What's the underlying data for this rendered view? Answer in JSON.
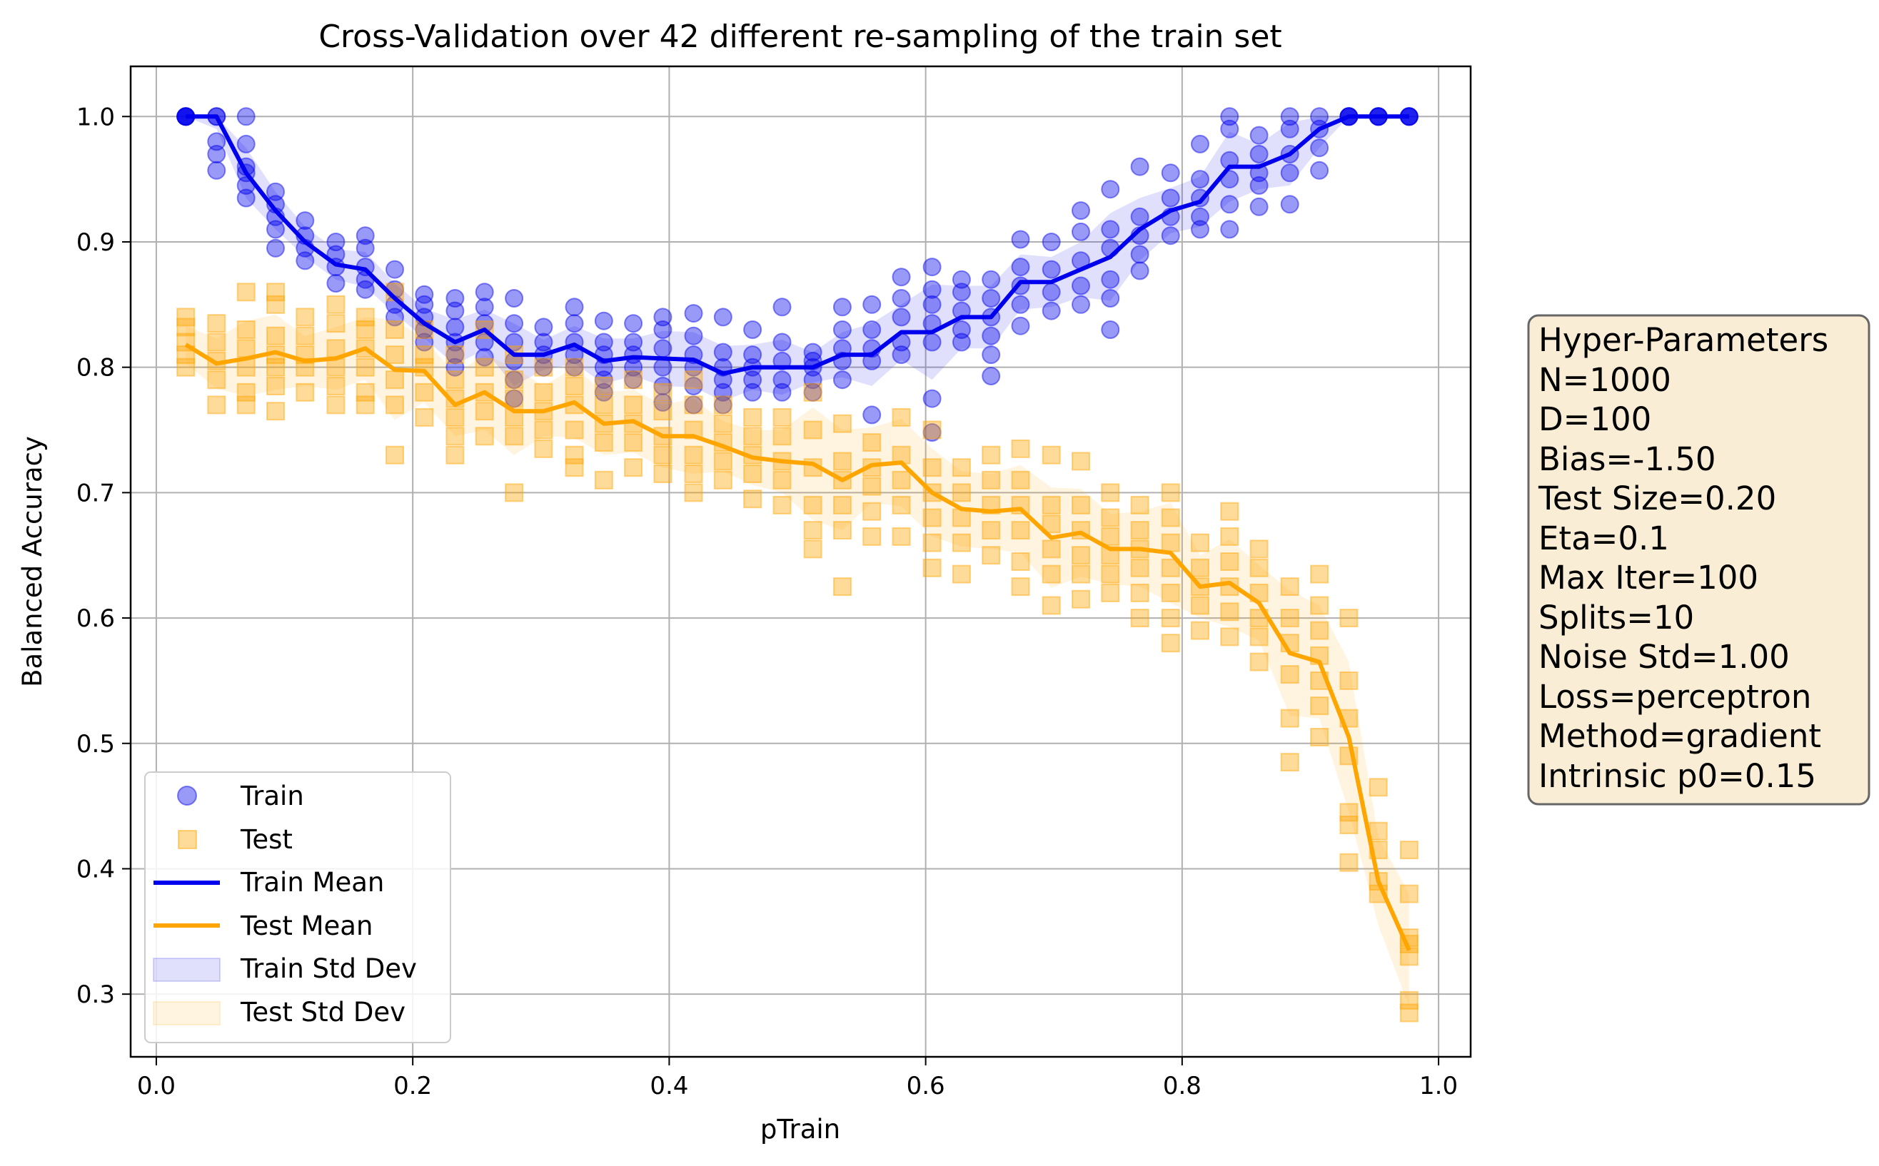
{
  "chart_data": {
    "type": "scatter",
    "title": "Cross-Validation over 42 different re-sampling of the train set",
    "xlabel": "pTrain",
    "ylabel": "Balanced Accuracy",
    "xlim": [
      -0.02,
      1.025
    ],
    "ylim": [
      0.25,
      1.04
    ],
    "xticks": [
      "0.0",
      "0.2",
      "0.4",
      "0.6",
      "0.8",
      "1.0"
    ],
    "yticks": [
      "0.3",
      "0.4",
      "0.5",
      "0.6",
      "0.7",
      "0.8",
      "0.9",
      "1.0"
    ],
    "grid": true,
    "legend_position": "lower-left",
    "legend": [
      "Train",
      "Test",
      "Train Mean",
      "Test Mean",
      "Train Std Dev",
      "Test Std Dev"
    ],
    "colors": {
      "train": "#0000ee",
      "test": "#ffa500"
    },
    "x": [
      0.023,
      0.047,
      0.07,
      0.093,
      0.116,
      0.14,
      0.163,
      0.186,
      0.209,
      0.233,
      0.256,
      0.279,
      0.302,
      0.326,
      0.349,
      0.372,
      0.395,
      0.419,
      0.442,
      0.465,
      0.488,
      0.512,
      0.535,
      0.558,
      0.581,
      0.605,
      0.628,
      0.651,
      0.674,
      0.698,
      0.721,
      0.744,
      0.767,
      0.791,
      0.814,
      0.837,
      0.86,
      0.884,
      0.907,
      0.93,
      0.953,
      0.977
    ],
    "series": [
      {
        "name": "Train Mean",
        "values": [
          1.0,
          1.0,
          0.955,
          0.925,
          0.9,
          0.882,
          0.878,
          0.855,
          0.835,
          0.82,
          0.83,
          0.81,
          0.81,
          0.818,
          0.805,
          0.808,
          0.807,
          0.806,
          0.795,
          0.8,
          0.8,
          0.8,
          0.81,
          0.81,
          0.828,
          0.828,
          0.84,
          0.84,
          0.868,
          0.868,
          0.878,
          0.888,
          0.91,
          0.925,
          0.932,
          0.96,
          0.96,
          0.97,
          0.99,
          1.0,
          1.0,
          1.0
        ]
      },
      {
        "name": "Test Mean",
        "values": [
          0.818,
          0.803,
          0.807,
          0.812,
          0.805,
          0.807,
          0.815,
          0.798,
          0.797,
          0.77,
          0.78,
          0.765,
          0.765,
          0.772,
          0.755,
          0.757,
          0.745,
          0.745,
          0.737,
          0.728,
          0.725,
          0.723,
          0.71,
          0.722,
          0.724,
          0.7,
          0.687,
          0.685,
          0.687,
          0.664,
          0.668,
          0.655,
          0.655,
          0.652,
          0.625,
          0.628,
          0.612,
          0.572,
          0.565,
          0.505,
          0.39,
          0.335
        ]
      },
      {
        "name": "Train",
        "values": [
          [
            1.0,
            1.0,
            1.0,
            1.0,
            1.0
          ],
          [
            1.0,
            1.0,
            0.98,
            0.97,
            0.957
          ],
          [
            1.0,
            0.978,
            0.96,
            0.955,
            0.945,
            0.935
          ],
          [
            0.94,
            0.93,
            0.92,
            0.91,
            0.895
          ],
          [
            0.917,
            0.905,
            0.895,
            0.885
          ],
          [
            0.9,
            0.89,
            0.88,
            0.867
          ],
          [
            0.905,
            0.895,
            0.88,
            0.87,
            0.862
          ],
          [
            0.878,
            0.862,
            0.85,
            0.84
          ],
          [
            0.858,
            0.85,
            0.84,
            0.83,
            0.82
          ],
          [
            0.855,
            0.845,
            0.832,
            0.82,
            0.81,
            0.8
          ],
          [
            0.86,
            0.848,
            0.835,
            0.82,
            0.808
          ],
          [
            0.855,
            0.835,
            0.82,
            0.805,
            0.79,
            0.775
          ],
          [
            0.832,
            0.82,
            0.81,
            0.8
          ],
          [
            0.848,
            0.835,
            0.82,
            0.81,
            0.8
          ],
          [
            0.837,
            0.82,
            0.81,
            0.8,
            0.79,
            0.78
          ],
          [
            0.835,
            0.82,
            0.81,
            0.8,
            0.79
          ],
          [
            0.84,
            0.83,
            0.815,
            0.8,
            0.785,
            0.772
          ],
          [
            0.843,
            0.825,
            0.81,
            0.8,
            0.785,
            0.77
          ],
          [
            0.84,
            0.812,
            0.8,
            0.79,
            0.78,
            0.77
          ],
          [
            0.83,
            0.81,
            0.8,
            0.79,
            0.78
          ],
          [
            0.848,
            0.82,
            0.805,
            0.79,
            0.78
          ],
          [
            0.812,
            0.805,
            0.8,
            0.79,
            0.78
          ],
          [
            0.848,
            0.83,
            0.815,
            0.805,
            0.79
          ],
          [
            0.85,
            0.83,
            0.815,
            0.805,
            0.762
          ],
          [
            0.872,
            0.855,
            0.84,
            0.82,
            0.81
          ],
          [
            0.88,
            0.862,
            0.85,
            0.835,
            0.82,
            0.775,
            0.748
          ],
          [
            0.87,
            0.86,
            0.845,
            0.83,
            0.82
          ],
          [
            0.87,
            0.855,
            0.84,
            0.825,
            0.81,
            0.793
          ],
          [
            0.902,
            0.88,
            0.865,
            0.85,
            0.833
          ],
          [
            0.9,
            0.878,
            0.86,
            0.845
          ],
          [
            0.925,
            0.908,
            0.885,
            0.865,
            0.85
          ],
          [
            0.942,
            0.91,
            0.895,
            0.87,
            0.855,
            0.83
          ],
          [
            0.96,
            0.92,
            0.905,
            0.89,
            0.877
          ],
          [
            0.955,
            0.935,
            0.92,
            0.905
          ],
          [
            0.978,
            0.95,
            0.935,
            0.92,
            0.91
          ],
          [
            1.0,
            0.99,
            0.965,
            0.95,
            0.93,
            0.91
          ],
          [
            0.985,
            0.97,
            0.955,
            0.945,
            0.928
          ],
          [
            1.0,
            0.99,
            0.97,
            0.955,
            0.93
          ],
          [
            1.0,
            0.99,
            0.975,
            0.957
          ],
          [
            1.0,
            1.0,
            1.0,
            1.0
          ],
          [
            1.0,
            1.0,
            1.0,
            1.0
          ],
          [
            1.0,
            1.0,
            1.0,
            1.0
          ]
        ]
      },
      {
        "name": "Test",
        "values": [
          [
            0.84,
            0.832,
            0.82,
            0.81,
            0.8
          ],
          [
            0.835,
            0.82,
            0.805,
            0.79,
            0.77
          ],
          [
            0.86,
            0.83,
            0.815,
            0.8,
            0.78,
            0.77
          ],
          [
            0.86,
            0.85,
            0.825,
            0.81,
            0.8,
            0.785,
            0.765
          ],
          [
            0.84,
            0.825,
            0.81,
            0.8,
            0.78
          ],
          [
            0.85,
            0.835,
            0.815,
            0.8,
            0.785,
            0.77
          ],
          [
            0.84,
            0.83,
            0.815,
            0.8,
            0.78,
            0.77
          ],
          [
            0.86,
            0.83,
            0.81,
            0.79,
            0.77,
            0.73
          ],
          [
            0.83,
            0.81,
            0.8,
            0.78,
            0.76
          ],
          [
            0.81,
            0.79,
            0.775,
            0.76,
            0.745,
            0.73
          ],
          [
            0.83,
            0.8,
            0.78,
            0.765,
            0.745
          ],
          [
            0.81,
            0.79,
            0.775,
            0.76,
            0.745,
            0.7
          ],
          [
            0.8,
            0.78,
            0.765,
            0.75,
            0.735
          ],
          [
            0.8,
            0.785,
            0.77,
            0.75,
            0.73,
            0.72
          ],
          [
            0.785,
            0.77,
            0.755,
            0.74,
            0.71
          ],
          [
            0.79,
            0.77,
            0.755,
            0.74,
            0.72
          ],
          [
            0.78,
            0.765,
            0.745,
            0.73,
            0.715
          ],
          [
            0.79,
            0.77,
            0.75,
            0.73,
            0.715,
            0.7
          ],
          [
            0.77,
            0.755,
            0.74,
            0.725,
            0.71
          ],
          [
            0.76,
            0.745,
            0.73,
            0.715,
            0.695
          ],
          [
            0.76,
            0.745,
            0.725,
            0.71,
            0.69
          ],
          [
            0.78,
            0.75,
            0.72,
            0.69,
            0.67,
            0.655
          ],
          [
            0.755,
            0.725,
            0.71,
            0.69,
            0.67,
            0.625
          ],
          [
            0.74,
            0.72,
            0.705,
            0.685,
            0.665
          ],
          [
            0.76,
            0.73,
            0.71,
            0.69,
            0.665
          ],
          [
            0.75,
            0.72,
            0.7,
            0.68,
            0.66,
            0.64
          ],
          [
            0.72,
            0.7,
            0.68,
            0.66,
            0.635
          ],
          [
            0.73,
            0.71,
            0.69,
            0.67,
            0.65
          ],
          [
            0.735,
            0.71,
            0.69,
            0.67,
            0.645,
            0.625
          ],
          [
            0.73,
            0.69,
            0.675,
            0.655,
            0.635,
            0.61
          ],
          [
            0.725,
            0.69,
            0.67,
            0.65,
            0.635,
            0.615
          ],
          [
            0.7,
            0.68,
            0.665,
            0.65,
            0.635,
            0.62
          ],
          [
            0.69,
            0.67,
            0.655,
            0.64,
            0.62,
            0.6
          ],
          [
            0.7,
            0.68,
            0.66,
            0.64,
            0.62,
            0.6,
            0.58
          ],
          [
            0.66,
            0.64,
            0.625,
            0.61,
            0.59
          ],
          [
            0.685,
            0.665,
            0.645,
            0.625,
            0.605,
            0.585
          ],
          [
            0.655,
            0.64,
            0.62,
            0.6,
            0.585,
            0.565
          ],
          [
            0.625,
            0.6,
            0.58,
            0.555,
            0.52,
            0.485
          ],
          [
            0.635,
            0.61,
            0.59,
            0.57,
            0.55,
            0.53,
            0.505
          ],
          [
            0.6,
            0.55,
            0.52,
            0.49,
            0.445,
            0.435,
            0.405
          ],
          [
            0.465,
            0.43,
            0.415,
            0.39,
            0.38
          ],
          [
            0.415,
            0.38,
            0.345,
            0.34,
            0.33,
            0.295,
            0.285
          ]
        ]
      }
    ],
    "std_dev": {
      "train": [
        0.0,
        0.01,
        0.02,
        0.015,
        0.012,
        0.012,
        0.014,
        0.012,
        0.012,
        0.018,
        0.016,
        0.025,
        0.012,
        0.015,
        0.018,
        0.015,
        0.022,
        0.022,
        0.022,
        0.018,
        0.022,
        0.012,
        0.018,
        0.025,
        0.022,
        0.038,
        0.025,
        0.025,
        0.022,
        0.02,
        0.022,
        0.035,
        0.025,
        0.018,
        0.02,
        0.028,
        0.018,
        0.025,
        0.015,
        0.0,
        0.0,
        0.0
      ],
      "test": [
        0.015,
        0.02,
        0.03,
        0.03,
        0.02,
        0.025,
        0.025,
        0.04,
        0.025,
        0.025,
        0.03,
        0.035,
        0.02,
        0.028,
        0.025,
        0.025,
        0.025,
        0.03,
        0.02,
        0.022,
        0.025,
        0.045,
        0.04,
        0.03,
        0.035,
        0.035,
        0.03,
        0.03,
        0.035,
        0.04,
        0.035,
        0.028,
        0.03,
        0.04,
        0.025,
        0.035,
        0.03,
        0.05,
        0.045,
        0.06,
        0.035,
        0.045
      ]
    }
  },
  "hyper_parameters": {
    "title": "Hyper-Parameters",
    "lines": [
      "N=1000",
      "D=100",
      "Bias=-1.50",
      "Test Size=0.20",
      "Eta=0.1",
      "Max Iter=100",
      "Splits=10",
      "Noise Std=1.00",
      "Loss=perceptron",
      "Method=gradient",
      "Intrinsic p0=0.15"
    ]
  }
}
